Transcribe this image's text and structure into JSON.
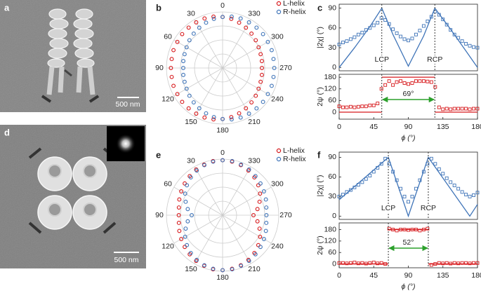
{
  "panels": [
    {
      "label": "a",
      "scale_bar": "500 nm"
    },
    {
      "label": "b"
    },
    {
      "label": "c"
    },
    {
      "label": "d",
      "scale_bar": "500 nm"
    },
    {
      "label": "e"
    },
    {
      "label": "f"
    }
  ],
  "chart_data": [
    {
      "type": "polar",
      "theta": [
        0,
        10,
        20,
        30,
        40,
        50,
        60,
        70,
        80,
        90,
        100,
        110,
        120,
        130,
        140,
        150,
        160,
        170,
        180,
        190,
        200,
        210,
        220,
        230,
        240,
        250,
        260,
        270,
        280,
        290,
        300,
        310,
        320,
        330,
        340,
        350
      ],
      "rlim": [
        0,
        1
      ],
      "rticks": [
        0.25,
        0.5,
        0.75,
        1
      ],
      "thetaticks": [
        0,
        30,
        60,
        90,
        120,
        150,
        180,
        210,
        240,
        270,
        300,
        330
      ],
      "legend": "upper right",
      "series": [
        {
          "name": "L-helix",
          "color": "#d7191c",
          "values": [
            0.91,
            0.93,
            0.94,
            0.94,
            0.94,
            0.94,
            0.93,
            0.93,
            0.92,
            0.92,
            0.92,
            0.93,
            0.93,
            0.94,
            0.94,
            0.94,
            0.94,
            0.93,
            0.91,
            0.89,
            0.86,
            0.83,
            0.8,
            0.77,
            0.74,
            0.72,
            0.71,
            0.7,
            0.71,
            0.72,
            0.74,
            0.77,
            0.8,
            0.83,
            0.86,
            0.89
          ]
        },
        {
          "name": "R-helix",
          "color": "#3f74b8",
          "values": [
            0.91,
            0.89,
            0.86,
            0.83,
            0.8,
            0.77,
            0.74,
            0.72,
            0.71,
            0.7,
            0.71,
            0.72,
            0.74,
            0.77,
            0.8,
            0.83,
            0.86,
            0.89,
            0.91,
            0.93,
            0.94,
            0.94,
            0.94,
            0.94,
            0.93,
            0.93,
            0.92,
            0.92,
            0.92,
            0.93,
            0.93,
            0.94,
            0.94,
            0.94,
            0.94,
            0.93
          ]
        }
      ]
    },
    {
      "type": "line",
      "ylabel": "|2χ| (°)",
      "xlim": [
        0,
        180
      ],
      "ylim": [
        -5,
        96
      ],
      "yticks": [
        0,
        30,
        60,
        90
      ],
      "vlines": [
        55.5,
        124.5
      ],
      "vline_labels": [
        "LCP",
        "RCP"
      ],
      "series": [
        {
          "color": "#3f74b8",
          "marker": "square",
          "x": [
            0,
            5,
            10,
            15,
            20,
            25,
            30,
            35,
            40,
            45,
            50,
            55,
            60,
            65,
            70,
            75,
            80,
            85,
            90,
            95,
            100,
            105,
            110,
            115,
            120,
            125,
            130,
            135,
            140,
            145,
            150,
            155,
            160,
            165,
            170,
            175,
            180
          ],
          "values": [
            35,
            38,
            40,
            43,
            46,
            50,
            53,
            57,
            60,
            64,
            68,
            75,
            72,
            66,
            58,
            52,
            47,
            43,
            41,
            44,
            50,
            56,
            63,
            70,
            77,
            85,
            80,
            73,
            65,
            57,
            50,
            45,
            40,
            36,
            33,
            31,
            30
          ]
        },
        {
          "color": "#3f74b8",
          "marker": "none",
          "x": [
            0,
            20,
            40,
            55.5,
            70,
            90,
            110,
            124.5,
            145,
            165,
            180
          ],
          "values": [
            0,
            30,
            62,
            90,
            50,
            2,
            48,
            90,
            58,
            25,
            0
          ]
        }
      ]
    },
    {
      "type": "line",
      "ylabel": "2ψ (°)",
      "xlabel": "ϕ (°)",
      "xlim": [
        0,
        180
      ],
      "xticks": [
        0,
        45,
        90,
        135,
        180
      ],
      "ylim": [
        -36,
        195
      ],
      "yticks": [
        0,
        60,
        120,
        180
      ],
      "vlines": [
        55.5,
        124.5
      ],
      "span_label": "69°",
      "span_color": "#2ca02c",
      "series": [
        {
          "color": "#d7191c",
          "marker": "square",
          "x": [
            0,
            5,
            10,
            15,
            20,
            25,
            30,
            35,
            40,
            45,
            50,
            55,
            60,
            65,
            70,
            75,
            80,
            85,
            90,
            95,
            100,
            105,
            110,
            115,
            120,
            125,
            130,
            135,
            140,
            145,
            150,
            155,
            160,
            165,
            170,
            175,
            180
          ],
          "values": [
            30,
            25,
            25,
            28,
            25,
            28,
            30,
            30,
            35,
            35,
            45,
            120,
            140,
            160,
            140,
            155,
            160,
            150,
            145,
            150,
            160,
            160,
            160,
            158,
            155,
            130,
            25,
            15,
            18,
            15,
            18,
            18,
            18,
            18,
            15,
            18,
            18
          ]
        },
        {
          "color": "#d7191c",
          "marker": "none",
          "x": [
            0,
            55.5,
            55.5,
            55.5,
            124.5,
            124.5,
            124.5,
            180
          ],
          "values": [
            0,
            0,
            null,
            180,
            180,
            null,
            0,
            0
          ]
        }
      ]
    },
    {
      "type": "polar",
      "theta": [
        0,
        10,
        20,
        30,
        40,
        50,
        60,
        70,
        80,
        90,
        100,
        110,
        120,
        130,
        140,
        150,
        160,
        170,
        180,
        190,
        200,
        210,
        220,
        230,
        240,
        250,
        260,
        270,
        280,
        290,
        300,
        310,
        320,
        330,
        340,
        350
      ],
      "rlim": [
        0,
        1
      ],
      "rticks": [
        0.25,
        0.5,
        0.75,
        1
      ],
      "thetaticks": [
        0,
        30,
        60,
        90,
        120,
        150,
        180,
        210,
        240,
        270,
        300,
        330
      ],
      "legend": "upper right",
      "series": [
        {
          "name": "L-helix",
          "color": "#d7191c",
          "values": [
            0.98,
            0.98,
            0.96,
            0.94,
            0.91,
            0.88,
            0.85,
            0.82,
            0.79,
            0.78,
            0.79,
            0.82,
            0.85,
            0.88,
            0.91,
            0.94,
            0.96,
            0.98,
            0.98,
            0.97,
            0.95,
            0.92,
            0.88,
            0.83,
            0.77,
            0.7,
            0.63,
            0.55,
            0.63,
            0.7,
            0.77,
            0.83,
            0.88,
            0.92,
            0.95,
            0.97
          ]
        },
        {
          "name": "R-helix",
          "color": "#3f74b8",
          "values": [
            0.98,
            0.97,
            0.95,
            0.92,
            0.88,
            0.83,
            0.77,
            0.7,
            0.63,
            0.55,
            0.63,
            0.7,
            0.77,
            0.83,
            0.88,
            0.92,
            0.95,
            0.97,
            0.98,
            0.98,
            0.96,
            0.94,
            0.91,
            0.88,
            0.85,
            0.82,
            0.79,
            0.78,
            0.79,
            0.82,
            0.85,
            0.88,
            0.91,
            0.94,
            0.96,
            0.98
          ]
        }
      ]
    },
    {
      "type": "line",
      "ylabel": "|2χ| (°)",
      "xlim": [
        0,
        180
      ],
      "ylim": [
        -5,
        98
      ],
      "yticks": [
        0,
        30,
        60,
        90
      ],
      "vlines": [
        64,
        116
      ],
      "vline_labels": [
        "LCP",
        "RCP"
      ],
      "series": [
        {
          "color": "#3f74b8",
          "marker": "square",
          "x": [
            0,
            5,
            10,
            15,
            20,
            25,
            30,
            35,
            40,
            45,
            50,
            55,
            60,
            65,
            70,
            75,
            80,
            85,
            90,
            95,
            100,
            105,
            110,
            115,
            120,
            125,
            130,
            135,
            140,
            145,
            150,
            155,
            160,
            165,
            170,
            175,
            180
          ],
          "values": [
            30,
            33,
            37,
            40,
            44,
            48,
            52,
            57,
            62,
            68,
            74,
            80,
            88,
            80,
            68,
            55,
            42,
            30,
            22,
            30,
            42,
            55,
            68,
            80,
            88,
            80,
            72,
            65,
            58,
            52,
            47,
            42,
            37,
            33,
            30,
            32,
            36
          ]
        },
        {
          "color": "#3f74b8",
          "marker": "none",
          "x": [
            0,
            64,
            90,
            116,
            170,
            180
          ],
          "values": [
            25,
            90,
            0,
            90,
            0,
            18
          ]
        }
      ]
    },
    {
      "type": "line",
      "ylabel": "2ψ (°)",
      "xlabel": "ϕ (°)",
      "xlim": [
        0,
        180
      ],
      "xticks": [
        0,
        45,
        90,
        135,
        180
      ],
      "ylim": [
        -20,
        215
      ],
      "yticks": [
        0,
        60,
        120,
        180
      ],
      "vlines": [
        64,
        116
      ],
      "span_label": "52°",
      "span_color": "#2ca02c",
      "series": [
        {
          "color": "#d7191c",
          "marker": "square",
          "x": [
            0,
            5,
            10,
            15,
            20,
            25,
            30,
            35,
            40,
            45,
            50,
            55,
            60,
            65,
            70,
            75,
            80,
            85,
            90,
            95,
            100,
            105,
            110,
            115,
            120,
            125,
            130,
            135,
            140,
            145,
            150,
            155,
            160,
            165,
            170,
            175,
            180
          ],
          "values": [
            5,
            5,
            3,
            5,
            8,
            3,
            5,
            2,
            5,
            8,
            3,
            5,
            0,
            185,
            180,
            175,
            180,
            180,
            178,
            180,
            180,
            175,
            180,
            185,
            -5,
            0,
            5,
            3,
            5,
            2,
            5,
            3,
            5,
            5,
            3,
            5,
            5
          ]
        },
        {
          "color": "#d7191c",
          "marker": "none",
          "x": [
            0,
            64,
            64,
            64,
            116,
            116,
            116,
            180
          ],
          "values": [
            0,
            0,
            null,
            180,
            180,
            null,
            0,
            0
          ]
        }
      ]
    }
  ]
}
